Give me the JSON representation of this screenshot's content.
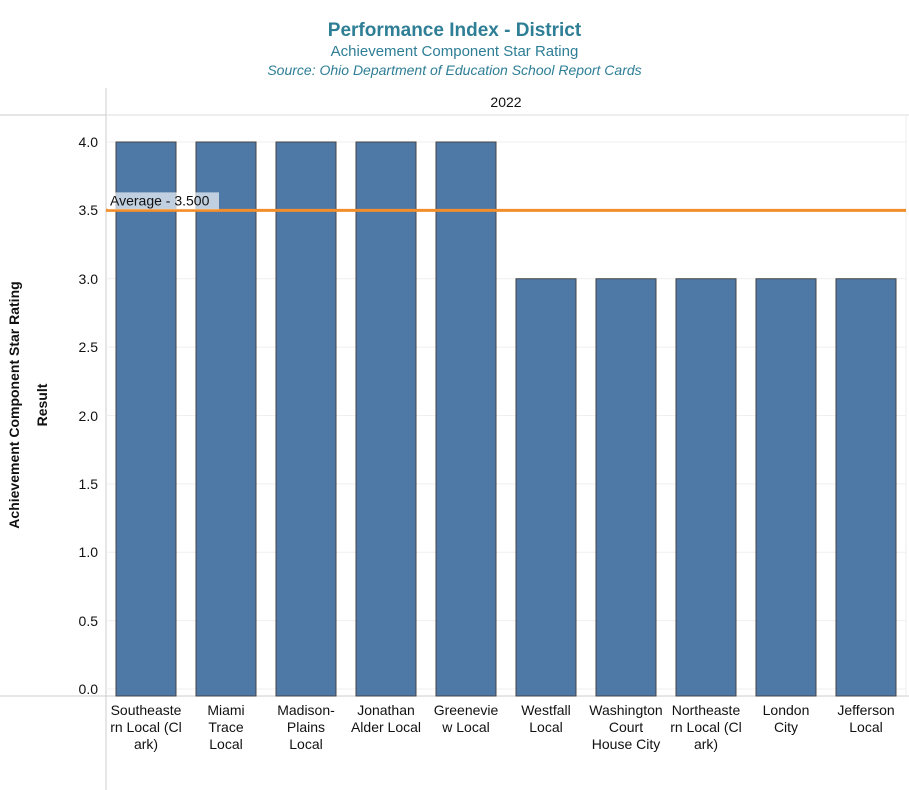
{
  "chart_data": {
    "type": "bar",
    "title": "Performance Index - District",
    "subtitle": "Achievement Component Star Rating",
    "source": "Source:  Ohio Department of Education School Report Cards",
    "column_header": "2022",
    "ylabel_outer": "Achievement Component Star Rating",
    "ylabel_inner": "Result",
    "ylim": [
      0,
      4.2
    ],
    "yticks": [
      "0.0",
      "0.5",
      "1.0",
      "1.5",
      "2.0",
      "2.5",
      "3.0",
      "3.5",
      "4.0"
    ],
    "categories": [
      [
        "Southeaste",
        "rn Local (Cl",
        "ark)"
      ],
      [
        "Miami",
        "Trace",
        "Local"
      ],
      [
        "Madison-",
        "Plains",
        "Local"
      ],
      [
        "Jonathan",
        "Alder Local"
      ],
      [
        "Greenevie",
        "w Local"
      ],
      [
        "Westfall",
        "Local"
      ],
      [
        "Washington",
        "Court",
        "House City"
      ],
      [
        "Northeaste",
        "rn Local (Cl",
        "ark)"
      ],
      [
        "London",
        "City"
      ],
      [
        "Jefferson",
        "Local"
      ]
    ],
    "values": [
      4,
      4,
      4,
      4,
      4,
      3,
      3,
      3,
      3,
      3
    ],
    "average": {
      "value": 3.5,
      "label": "Average - 3.500"
    },
    "colors": {
      "bar": "#4e79a7",
      "average_line": "#f28e2b",
      "title": "#2e7e96"
    }
  }
}
